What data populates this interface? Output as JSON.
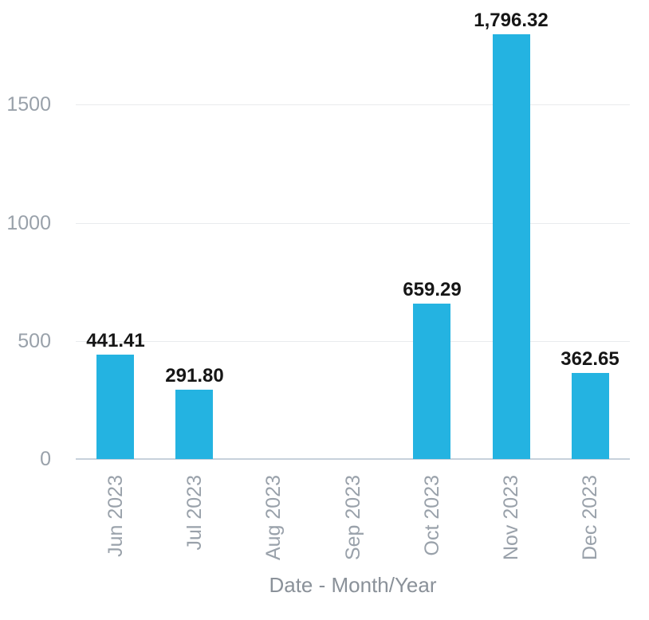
{
  "chart_data": {
    "type": "bar",
    "title": "",
    "xlabel": "Date - Month/Year",
    "ylabel": "",
    "categories": [
      "Jun 2023",
      "Jul 2023",
      "Aug 2023",
      "Sep 2023",
      "Oct 2023",
      "Nov 2023",
      "Dec 2023"
    ],
    "values": [
      441.41,
      291.8,
      0,
      0,
      659.29,
      1796.32,
      362.65
    ],
    "value_labels": [
      "441.41",
      "291.80",
      "",
      "",
      "659.29",
      "1,796.32",
      "362.65"
    ],
    "yticks": [
      0,
      500,
      1000,
      1500
    ],
    "ylim": [
      0,
      1850
    ],
    "grid": "horizontal-only",
    "legend": "none",
    "colors": {
      "bar": "#24B3E1",
      "value_label": "#161616",
      "tick_label": "#99A1AA",
      "axis_title": "#8A9199",
      "gridline": "#E9EBED",
      "baseline": "#C7D1DB",
      "background": "#FFFFFF"
    }
  }
}
